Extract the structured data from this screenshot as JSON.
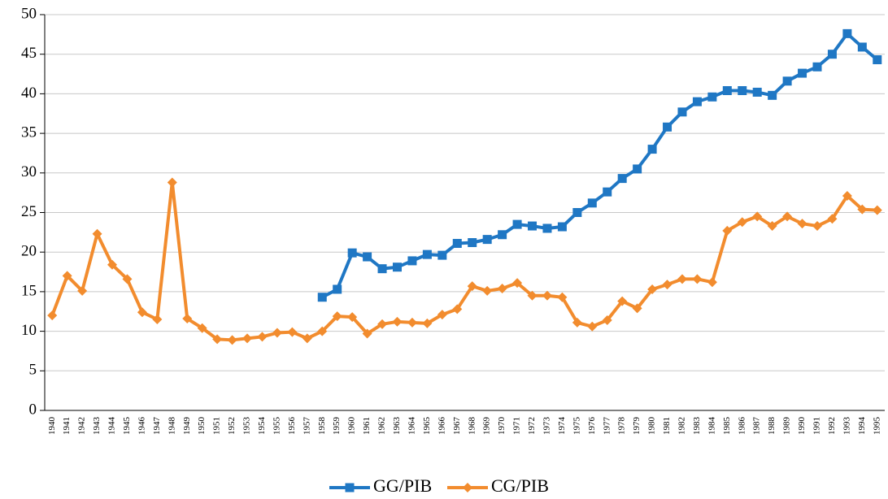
{
  "chart_data": {
    "type": "line",
    "categories": [
      "1940",
      "1941",
      "1942",
      "1943",
      "1944",
      "1945",
      "1946",
      "1947",
      "1948",
      "1949",
      "1950",
      "1951",
      "1952",
      "1953",
      "1954",
      "1955",
      "1956",
      "1957",
      "1958",
      "1959",
      "1960",
      "1961",
      "1962",
      "1963",
      "1964",
      "1965",
      "1966",
      "1967",
      "1968",
      "1969",
      "1970",
      "1971",
      "1972",
      "1973",
      "1974",
      "1975",
      "1976",
      "1977",
      "1978",
      "1979",
      "1980",
      "1981",
      "1982",
      "1983",
      "1984",
      "1985",
      "1986",
      "1987",
      "1988",
      "1989",
      "1990",
      "1991",
      "1992",
      "1993",
      "1994",
      "1995"
    ],
    "series": [
      {
        "name": "GG/PIB",
        "color": "#1f77c4",
        "marker": "square",
        "values": [
          null,
          null,
          null,
          null,
          null,
          null,
          null,
          null,
          null,
          null,
          null,
          null,
          null,
          null,
          null,
          null,
          null,
          null,
          14.3,
          15.3,
          19.9,
          19.4,
          17.9,
          18.1,
          18.9,
          19.7,
          19.6,
          21.1,
          21.2,
          21.6,
          22.2,
          23.5,
          23.3,
          23.0,
          23.2,
          25.0,
          26.2,
          27.6,
          29.3,
          30.5,
          33.0,
          35.8,
          37.7,
          39.0,
          39.6,
          40.4,
          40.4,
          40.2,
          39.8,
          41.6,
          42.6,
          43.4,
          45.0,
          47.6,
          45.9,
          44.3
        ]
      },
      {
        "name": "CG/PIB",
        "color": "#f28c2e",
        "marker": "diamond",
        "values": [
          12.0,
          17.0,
          15.1,
          22.3,
          18.4,
          16.6,
          12.4,
          11.5,
          28.8,
          11.6,
          10.4,
          9.0,
          8.9,
          9.1,
          9.3,
          9.8,
          9.9,
          9.1,
          10.0,
          11.9,
          11.8,
          9.7,
          10.9,
          11.2,
          11.1,
          11.0,
          12.1,
          12.8,
          15.7,
          15.1,
          15.4,
          16.1,
          14.5,
          14.5,
          14.3,
          11.1,
          10.6,
          11.4,
          13.8,
          12.9,
          15.3,
          15.9,
          16.6,
          16.6,
          16.2,
          22.7,
          23.8,
          24.5,
          23.3,
          24.5,
          23.6,
          23.3,
          24.2,
          27.1,
          25.4,
          25.3
        ]
      }
    ],
    "ylim": [
      0,
      50
    ],
    "yticks": [
      0,
      5,
      10,
      15,
      20,
      25,
      30,
      35,
      40,
      45,
      50
    ],
    "grid": true,
    "legend": "bottom"
  }
}
